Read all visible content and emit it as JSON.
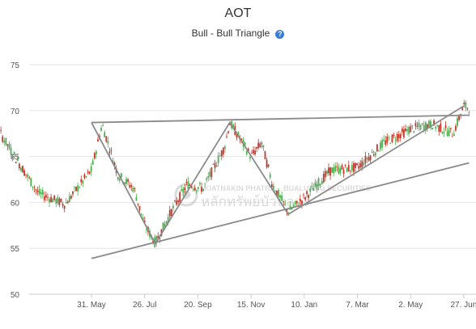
{
  "title": "AOT",
  "subtitle": "Bull - Bull Triangle",
  "icons": {
    "info": "info-circle-icon",
    "watermark": "company-logo"
  },
  "watermark": {
    "line1": "KIATNAKIN PHATRA... BUALUANG SECURITIES",
    "line2": "หลักทรัพย์บัวหลวง"
  },
  "colors": {
    "up": "#4caf50",
    "down": "#c0392b",
    "pattern": "#8a8a8a",
    "grid": "#e6e6e6"
  },
  "chart_data": {
    "type": "candlestick",
    "title": "AOT",
    "subtitle": "Bull - Bull Triangle",
    "ylim": [
      50,
      75
    ],
    "yticks": [
      50,
      55,
      60,
      65,
      70,
      75
    ],
    "xticks": [
      "31. May",
      "26. Jul",
      "20. Sep",
      "15. Nov",
      "10. Jan",
      "7. Mar",
      "2. May",
      "27. Jun"
    ],
    "grid": true,
    "close_series_approx": [
      {
        "tick": -2.3,
        "price": 66.5
      },
      {
        "tick": -1.9,
        "price": 69.3
      },
      {
        "tick": -1.5,
        "price": 65.5
      },
      {
        "tick": -1.0,
        "price": 61.0
      },
      {
        "tick": -0.5,
        "price": 59.8
      },
      {
        "tick": 0.0,
        "price": 63.5
      },
      {
        "tick": 0.2,
        "price": 68.5
      },
      {
        "tick": 0.5,
        "price": 63.0
      },
      {
        "tick": 0.8,
        "price": 61.5
      },
      {
        "tick": 1.0,
        "price": 57.5
      },
      {
        "tick": 1.2,
        "price": 55.6
      },
      {
        "tick": 1.5,
        "price": 59.0
      },
      {
        "tick": 1.8,
        "price": 62.0
      },
      {
        "tick": 2.1,
        "price": 61.5
      },
      {
        "tick": 2.5,
        "price": 66.0
      },
      {
        "tick": 2.6,
        "price": 68.7
      },
      {
        "tick": 3.0,
        "price": 65.0
      },
      {
        "tick": 3.2,
        "price": 66.5
      },
      {
        "tick": 3.4,
        "price": 62.0
      },
      {
        "tick": 3.7,
        "price": 59.0
      },
      {
        "tick": 4.0,
        "price": 60.5
      },
      {
        "tick": 4.5,
        "price": 63.5
      },
      {
        "tick": 5.0,
        "price": 63.8
      },
      {
        "tick": 5.5,
        "price": 66.5
      },
      {
        "tick": 6.0,
        "price": 68.0
      },
      {
        "tick": 6.4,
        "price": 68.5
      },
      {
        "tick": 6.8,
        "price": 67.5
      },
      {
        "tick": 7.0,
        "price": 70.5
      },
      {
        "tick": 7.1,
        "price": 70.3
      }
    ],
    "pattern_lines": {
      "upper_trendline": {
        "from": {
          "tick": 0.0,
          "price": 68.7
        },
        "to": {
          "tick": 7.1,
          "price": 69.5
        }
      },
      "lower_trendline": {
        "from": {
          "tick": 0.0,
          "price": 53.9
        },
        "to": {
          "tick": 7.1,
          "price": 64.3
        }
      },
      "zigzag": [
        {
          "tick": 0.0,
          "price": 68.7
        },
        {
          "tick": 1.2,
          "price": 55.5
        },
        {
          "tick": 2.6,
          "price": 68.7
        },
        {
          "tick": 3.7,
          "price": 58.7
        },
        {
          "tick": 7.0,
          "price": 70.5
        }
      ]
    }
  }
}
